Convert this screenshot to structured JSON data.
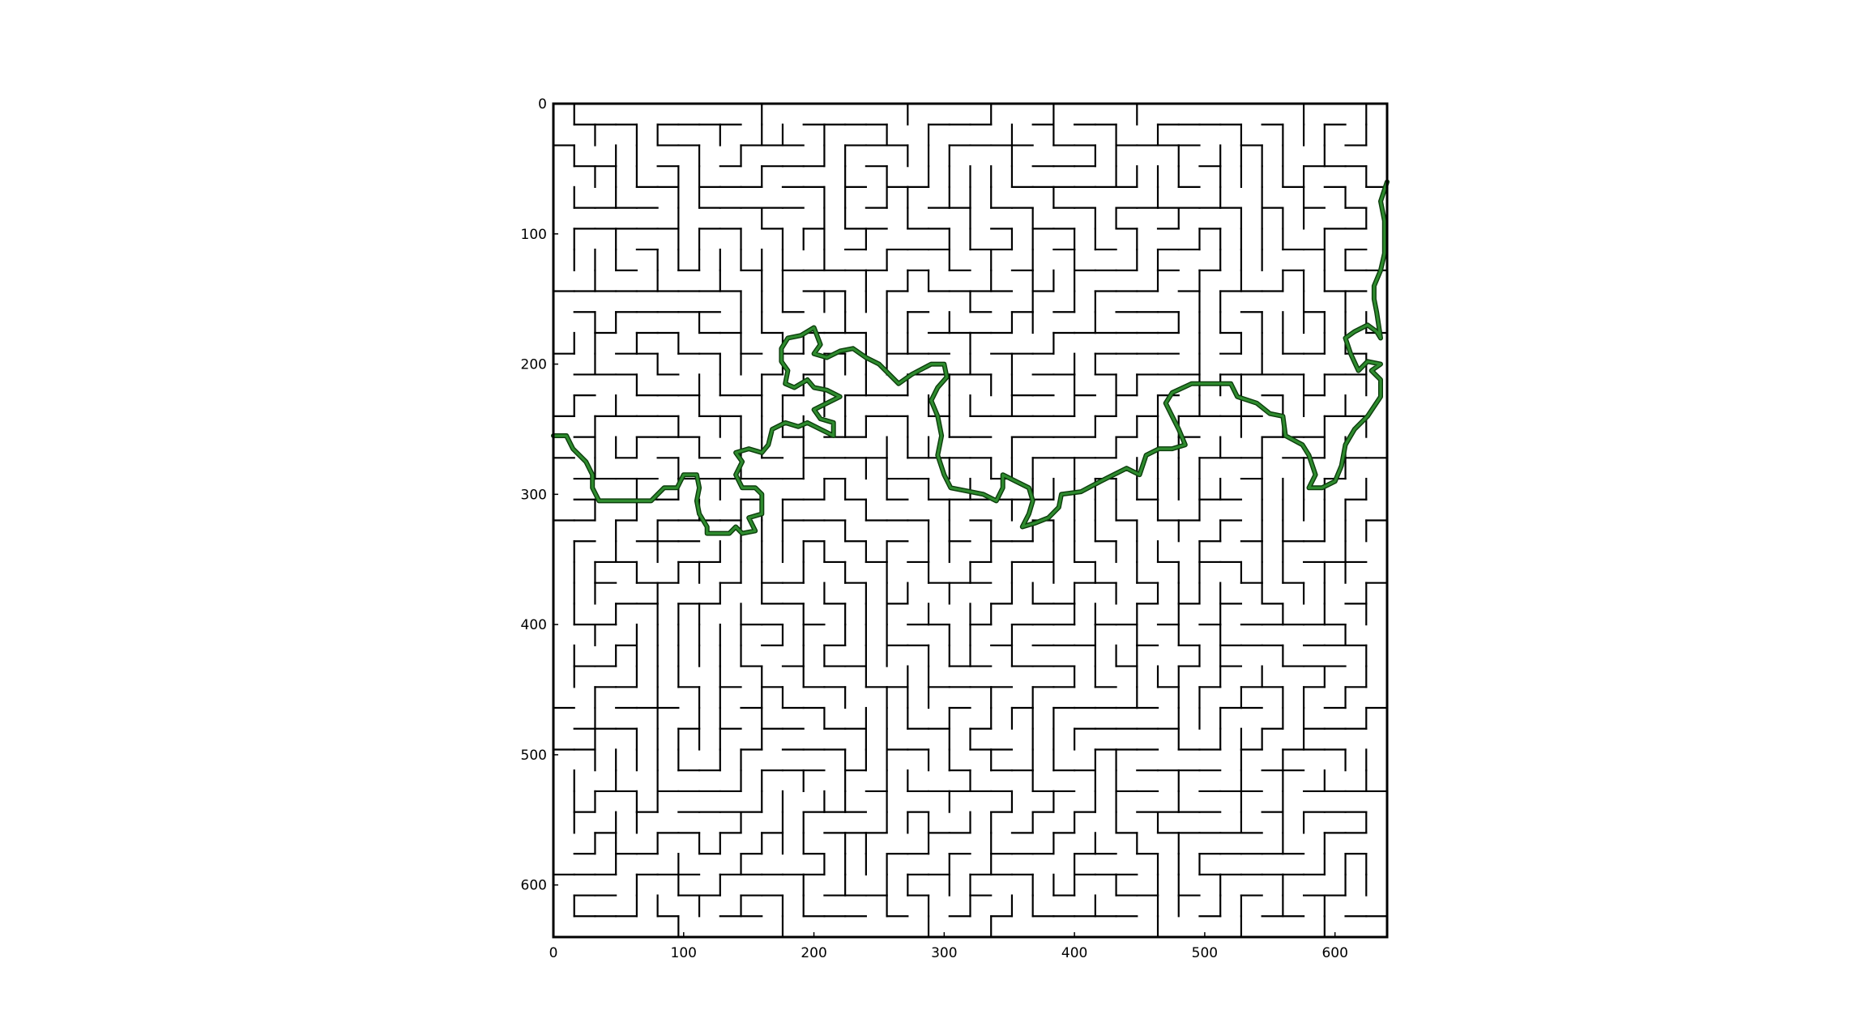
{
  "chart_data": {
    "type": "maze",
    "title": "",
    "xlabel": "",
    "ylabel": "",
    "xlim": [
      0,
      640
    ],
    "ylim": [
      640,
      0
    ],
    "x_ticks": [
      0,
      100,
      200,
      300,
      400,
      500,
      600
    ],
    "y_ticks": [
      0,
      100,
      200,
      300,
      400,
      500,
      600
    ],
    "x_tick_labels": [
      "0",
      "100",
      "200",
      "300",
      "400",
      "500",
      "600"
    ],
    "y_tick_labels": [
      "0",
      "100",
      "200",
      "300",
      "400",
      "500",
      "600"
    ],
    "grid": false,
    "maze": {
      "rows": 40,
      "cols": 40,
      "cell_size": 16,
      "wall_color": "#000000",
      "seed": 7
    },
    "solution_path": {
      "color": "#2e8b2e",
      "points": [
        [
          0,
          255
        ],
        [
          10,
          255
        ],
        [
          15,
          265
        ],
        [
          25,
          275
        ],
        [
          30,
          285
        ],
        [
          30,
          295
        ],
        [
          35,
          305
        ],
        [
          60,
          305
        ],
        [
          75,
          305
        ],
        [
          85,
          295
        ],
        [
          95,
          295
        ],
        [
          100,
          285
        ],
        [
          110,
          285
        ],
        [
          112,
          295
        ],
        [
          110,
          305
        ],
        [
          112,
          315
        ],
        [
          118,
          325
        ],
        [
          118,
          330
        ],
        [
          135,
          330
        ],
        [
          140,
          325
        ],
        [
          145,
          330
        ],
        [
          155,
          328
        ],
        [
          150,
          318
        ],
        [
          160,
          315
        ],
        [
          160,
          300
        ],
        [
          155,
          295
        ],
        [
          145,
          295
        ],
        [
          140,
          285
        ],
        [
          145,
          275
        ],
        [
          140,
          268
        ],
        [
          150,
          265
        ],
        [
          160,
          268
        ],
        [
          165,
          262
        ],
        [
          168,
          250
        ],
        [
          178,
          245
        ],
        [
          188,
          248
        ],
        [
          195,
          245
        ],
        [
          205,
          250
        ],
        [
          215,
          255
        ],
        [
          215,
          245
        ],
        [
          205,
          242
        ],
        [
          200,
          235
        ],
        [
          210,
          230
        ],
        [
          220,
          225
        ],
        [
          210,
          220
        ],
        [
          200,
          218
        ],
        [
          195,
          212
        ],
        [
          185,
          218
        ],
        [
          178,
          215
        ],
        [
          180,
          205
        ],
        [
          175,
          198
        ],
        [
          175,
          188
        ],
        [
          180,
          180
        ],
        [
          190,
          178
        ],
        [
          200,
          172
        ],
        [
          205,
          185
        ],
        [
          200,
          192
        ],
        [
          210,
          195
        ],
        [
          220,
          190
        ],
        [
          230,
          188
        ],
        [
          240,
          195
        ],
        [
          250,
          200
        ],
        [
          260,
          210
        ],
        [
          265,
          215
        ],
        [
          275,
          208
        ],
        [
          290,
          200
        ],
        [
          300,
          200
        ],
        [
          302,
          210
        ],
        [
          295,
          218
        ],
        [
          290,
          228
        ],
        [
          295,
          240
        ],
        [
          298,
          255
        ],
        [
          295,
          270
        ],
        [
          300,
          285
        ],
        [
          305,
          295
        ],
        [
          320,
          298
        ],
        [
          330,
          300
        ],
        [
          340,
          305
        ],
        [
          345,
          295
        ],
        [
          345,
          285
        ],
        [
          355,
          290
        ],
        [
          365,
          295
        ],
        [
          368,
          305
        ],
        [
          365,
          315
        ],
        [
          360,
          325
        ],
        [
          370,
          322
        ],
        [
          380,
          318
        ],
        [
          388,
          310
        ],
        [
          390,
          300
        ],
        [
          405,
          298
        ],
        [
          420,
          290
        ],
        [
          430,
          285
        ],
        [
          440,
          280
        ],
        [
          450,
          285
        ],
        [
          455,
          270
        ],
        [
          465,
          265
        ],
        [
          475,
          265
        ],
        [
          485,
          262
        ],
        [
          480,
          250
        ],
        [
          475,
          240
        ],
        [
          470,
          230
        ],
        [
          475,
          222
        ],
        [
          490,
          215
        ],
        [
          505,
          215
        ],
        [
          520,
          215
        ],
        [
          525,
          225
        ],
        [
          540,
          230
        ],
        [
          550,
          238
        ],
        [
          560,
          240
        ],
        [
          562,
          255
        ],
        [
          575,
          262
        ],
        [
          580,
          270
        ],
        [
          585,
          285
        ],
        [
          580,
          295
        ],
        [
          590,
          295
        ],
        [
          600,
          290
        ],
        [
          605,
          278
        ],
        [
          608,
          262
        ],
        [
          615,
          250
        ],
        [
          625,
          240
        ],
        [
          635,
          225
        ],
        [
          635,
          212
        ],
        [
          628,
          205
        ],
        [
          635,
          200
        ],
        [
          625,
          198
        ],
        [
          618,
          205
        ],
        [
          612,
          192
        ],
        [
          608,
          180
        ],
        [
          615,
          175
        ],
        [
          625,
          170
        ],
        [
          632,
          175
        ],
        [
          635,
          180
        ],
        [
          632,
          160
        ],
        [
          630,
          150
        ],
        [
          630,
          140
        ],
        [
          635,
          128
        ],
        [
          638,
          115
        ],
        [
          638,
          90
        ],
        [
          635,
          75
        ],
        [
          640,
          60
        ]
      ]
    }
  }
}
